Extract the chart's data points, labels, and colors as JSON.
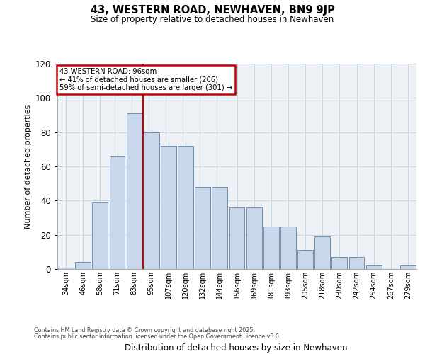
{
  "title_line1": "43, WESTERN ROAD, NEWHAVEN, BN9 9JP",
  "title_line2": "Size of property relative to detached houses in Newhaven",
  "xlabel": "Distribution of detached houses by size in Newhaven",
  "ylabel": "Number of detached properties",
  "categories": [
    "34sqm",
    "46sqm",
    "58sqm",
    "71sqm",
    "83sqm",
    "95sqm",
    "107sqm",
    "120sqm",
    "132sqm",
    "144sqm",
    "156sqm",
    "169sqm",
    "181sqm",
    "193sqm",
    "205sqm",
    "218sqm",
    "230sqm",
    "242sqm",
    "254sqm",
    "267sqm",
    "279sqm"
  ],
  "values": [
    1,
    4,
    39,
    66,
    91,
    80,
    72,
    72,
    48,
    48,
    36,
    36,
    25,
    25,
    11,
    19,
    7,
    7,
    2,
    0,
    2
  ],
  "bar_color": "#c8d8ea",
  "bar_edge_color": "#6080a8",
  "vline_color": "#cc0000",
  "vline_index": 5,
  "annotation_text": "43 WESTERN ROAD: 96sqm\n← 41% of detached houses are smaller (206)\n59% of semi-detached houses are larger (301) →",
  "annotation_box_edgecolor": "#cc0000",
  "ylim_max": 120,
  "yticks": [
    0,
    20,
    40,
    60,
    80,
    100,
    120
  ],
  "grid_color": "#c8d4de",
  "plot_bg_color": "#eef2f7",
  "footer_line1": "Contains HM Land Registry data © Crown copyright and database right 2025.",
  "footer_line2": "Contains public sector information licensed under the Open Government Licence v3.0."
}
